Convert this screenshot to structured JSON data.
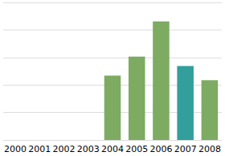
{
  "chart_data": {
    "type": "bar",
    "categories": [
      "2000",
      "2001",
      "2002",
      "2003",
      "2004",
      "2005",
      "2006",
      "2007",
      "2008"
    ],
    "values": [
      null,
      null,
      null,
      null,
      2.34,
      3.03,
      4.31,
      2.69,
      2.17
    ],
    "colors": [
      "#7dab62",
      "#7dab62",
      "#7dab62",
      "#7dab62",
      "#7dab62",
      "#7dab62",
      "#7dab62",
      "#329f9c",
      "#7dab62"
    ],
    "ylim": [
      0,
      5
    ],
    "yticks": [
      0,
      1,
      2,
      3,
      4,
      5
    ],
    "grid": true,
    "tick_labels": "x"
  }
}
